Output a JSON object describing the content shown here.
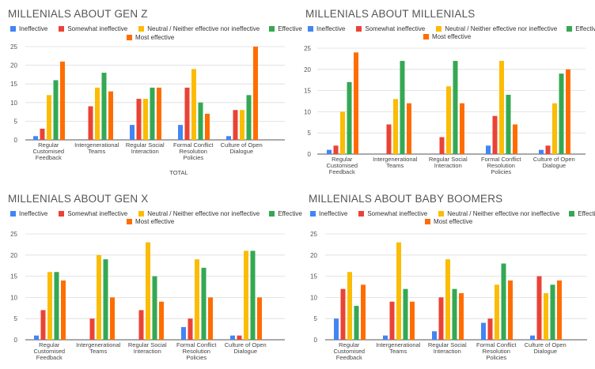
{
  "chart_data": [
    {
      "type": "bar",
      "title": "MILLENIALS ABOUT GEN Z",
      "xlabel": "TOTAL",
      "ylabel": "",
      "ylim": [
        0,
        25
      ],
      "yticks": [
        0,
        5,
        10,
        15,
        20,
        25
      ],
      "grid": true,
      "legend_position": "top",
      "categories": [
        "Regular Customised Feedback",
        "Intergenerational Teams",
        "Regular Social Interaction",
        "Formal Conflict Resolution Policies",
        "Culture of Open Dialogue"
      ],
      "series": [
        {
          "name": "Ineffective",
          "color": "#4285f4",
          "values": [
            1,
            0,
            4,
            4,
            1
          ]
        },
        {
          "name": "Somewhat ineffective",
          "color": "#ea4335",
          "values": [
            3,
            9,
            11,
            14,
            8
          ]
        },
        {
          "name": "Neutral / Neither effective nor ineffective",
          "color": "#fbbc04",
          "values": [
            12,
            14,
            11,
            19,
            8
          ]
        },
        {
          "name": "Effective",
          "color": "#34a853",
          "values": [
            16,
            18,
            14,
            10,
            12
          ]
        },
        {
          "name": "Most effective",
          "color": "#ff6d01",
          "values": [
            21,
            13,
            14,
            7,
            25
          ]
        }
      ]
    },
    {
      "type": "bar",
      "title": "MILLENIALS ABOUT MILLENIALS",
      "xlabel": "",
      "ylabel": "",
      "ylim": [
        0,
        25
      ],
      "yticks": [
        0,
        5,
        10,
        15,
        20,
        25
      ],
      "grid": true,
      "legend_position": "top",
      "categories": [
        "Regular Customised Feedback",
        "Intergenerational Teams",
        "Regular Social Interaction",
        "Formal Conflict Resolution Policies",
        "Culture of Open Dialogue"
      ],
      "series": [
        {
          "name": "Ineffective",
          "color": "#4285f4",
          "values": [
            1,
            0,
            0,
            2,
            1
          ]
        },
        {
          "name": "Somewhat ineffective",
          "color": "#ea4335",
          "values": [
            2,
            7,
            4,
            9,
            2
          ]
        },
        {
          "name": "Neutral / Neither effective nor ineffective",
          "color": "#fbbc04",
          "values": [
            10,
            13,
            16,
            22,
            12
          ]
        },
        {
          "name": "Effective",
          "color": "#34a853",
          "values": [
            17,
            22,
            22,
            14,
            19
          ]
        },
        {
          "name": "Most effective",
          "color": "#ff6d01",
          "values": [
            24,
            12,
            12,
            7,
            20
          ]
        }
      ]
    },
    {
      "type": "bar",
      "title": "MILLENIALS ABOUT GEN X",
      "xlabel": "",
      "ylabel": "",
      "ylim": [
        0,
        25
      ],
      "yticks": [
        0,
        5,
        10,
        15,
        20,
        25
      ],
      "grid": true,
      "legend_position": "top",
      "categories": [
        "Regular Customised Feedback",
        "Intergenerational Teams",
        "Regular Social Interaction",
        "Formal Conflict Resolution Policies",
        "Culture of Open Dialogue"
      ],
      "series": [
        {
          "name": "Ineffective",
          "color": "#4285f4",
          "values": [
            1,
            0,
            0,
            3,
            1
          ]
        },
        {
          "name": "Somewhat ineffective",
          "color": "#ea4335",
          "values": [
            7,
            5,
            7,
            5,
            1
          ]
        },
        {
          "name": "Neutral / Neither effective nor ineffective",
          "color": "#fbbc04",
          "values": [
            16,
            20,
            23,
            19,
            21
          ]
        },
        {
          "name": "Effective",
          "color": "#34a853",
          "values": [
            16,
            19,
            15,
            17,
            21
          ]
        },
        {
          "name": "Most effective",
          "color": "#ff6d01",
          "values": [
            14,
            10,
            9,
            10,
            10
          ]
        }
      ]
    },
    {
      "type": "bar",
      "title": "MILLENIALS ABOUT BABY BOOMERS",
      "xlabel": "",
      "ylabel": "",
      "ylim": [
        0,
        25
      ],
      "yticks": [
        0,
        5,
        10,
        15,
        20,
        25
      ],
      "grid": true,
      "legend_position": "top",
      "categories": [
        "Regular Customised Feedback",
        "Intergenerational Teams",
        "Regular Social Interaction",
        "Formal Conflict Resolution Policies",
        "Culture of Open Dialogue"
      ],
      "series": [
        {
          "name": "Ineffective",
          "color": "#4285f4",
          "values": [
            5,
            1,
            2,
            4,
            1
          ]
        },
        {
          "name": "Somewhat ineffective",
          "color": "#ea4335",
          "values": [
            12,
            9,
            10,
            5,
            15
          ]
        },
        {
          "name": "Neutral / Neither effective nor ineffective",
          "color": "#fbbc04",
          "values": [
            16,
            23,
            19,
            13,
            11
          ]
        },
        {
          "name": "Effective",
          "color": "#34a853",
          "values": [
            8,
            12,
            12,
            18,
            13
          ]
        },
        {
          "name": "Most effective",
          "color": "#ff6d01",
          "values": [
            13,
            9,
            11,
            14,
            14
          ]
        }
      ]
    }
  ]
}
